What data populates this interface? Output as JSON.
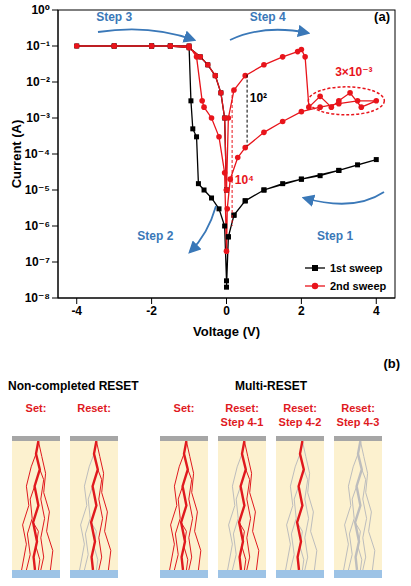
{
  "chart_data": {
    "type": "line",
    "title": "(a)",
    "x_label": "Voltage (V)",
    "y_label": "Current (A)",
    "xlim": [
      -4.5,
      4.5
    ],
    "xticks": [
      -4,
      -2,
      0,
      2,
      4
    ],
    "ylim": [
      1e-08,
      1
    ],
    "yticks": [
      {
        "value": 1e-08,
        "label": "10⁻⁸"
      },
      {
        "value": 1e-07,
        "label": "10⁻⁷"
      },
      {
        "value": 1e-06,
        "label": "10⁻⁶"
      },
      {
        "value": 1e-05,
        "label": "10⁻⁵"
      },
      {
        "value": 0.0001,
        "label": "10⁻⁴"
      },
      {
        "value": 0.001,
        "label": "10⁻³"
      },
      {
        "value": 0.01,
        "label": "10⁻²"
      },
      {
        "value": 0.1,
        "label": "10⁻¹"
      },
      {
        "value": 1,
        "label": "10⁰"
      }
    ],
    "log": "y",
    "legend": "lower right",
    "annotations": [
      "Step 1",
      "Step 2",
      "Step 3",
      "Step 4",
      "10²",
      "10⁴",
      "3×10⁻³"
    ],
    "series": [
      {
        "name": "1st sweep",
        "color": "#000000",
        "marker": "square",
        "x": [
          0,
          0.05,
          0.2,
          0.5,
          1,
          1.5,
          2,
          2.5,
          3,
          3.5,
          4,
          3,
          2,
          1,
          0.5,
          0.2,
          0.05,
          0,
          -0.05,
          -0.2,
          -0.4,
          -0.6,
          -0.75,
          -0.8,
          -0.9,
          -0.95,
          -1,
          -1.5,
          -2,
          -3,
          -4,
          -3,
          -2,
          -1.5,
          -1,
          -0.7,
          -0.5,
          -0.3,
          -0.15,
          -0.05,
          0
        ],
        "values": [
          2e-08,
          5e-07,
          2e-06,
          5e-06,
          1e-05,
          1.5e-05,
          2e-05,
          2.5e-05,
          3.5e-05,
          5e-05,
          7e-05,
          3.5e-05,
          2e-05,
          1e-05,
          5e-06,
          2e-06,
          5e-07,
          3e-08,
          1e-06,
          3e-06,
          6e-06,
          1e-05,
          1.5e-05,
          0.0003,
          0.0005,
          0.003,
          0.1,
          0.1,
          0.1,
          0.1,
          0.1,
          0.1,
          0.1,
          0.1,
          0.09,
          0.05,
          0.03,
          0.015,
          0.005,
          0.001,
          1e-05
        ]
      },
      {
        "name": "2nd sweep",
        "color": "#e8141b",
        "marker": "circle",
        "x": [
          0,
          0.05,
          0.2,
          0.5,
          1,
          1.5,
          1.9,
          2,
          2.1,
          2.2,
          2.5,
          2.8,
          3,
          3.3,
          3.6,
          4,
          3.5,
          3,
          2.5,
          2,
          1.5,
          1,
          0.5,
          0.3,
          0.1,
          0.02,
          0,
          -0.05,
          -0.2,
          -0.4,
          -0.6,
          -0.65,
          -0.8,
          -1,
          -1.5,
          -2,
          -3,
          -4,
          -3,
          -2,
          -1.5,
          -1,
          -0.7,
          -0.5,
          -0.3,
          -0.15,
          -0.05,
          0
        ],
        "values": [
          1e-05,
          0.001,
          0.006,
          0.015,
          0.03,
          0.05,
          0.07,
          0.08,
          0.05,
          0.002,
          0.004,
          0.002,
          0.003,
          0.005,
          0.002,
          0.003,
          0.003,
          0.0025,
          0.002,
          0.0015,
          0.0008,
          0.0004,
          0.00015,
          8e-05,
          2e-05,
          3e-06,
          2e-07,
          3e-05,
          0.0003,
          0.001,
          0.002,
          0.003,
          0.05,
          0.1,
          0.1,
          0.1,
          0.1,
          0.1,
          0.1,
          0.1,
          0.1,
          0.09,
          0.05,
          0.03,
          0.015,
          0.005,
          0.001,
          1e-05
        ]
      }
    ]
  },
  "diagram": {
    "label": "(b)",
    "groups": [
      {
        "title": "Non-completed RESET",
        "panels": [
          "Set:",
          "Reset:"
        ]
      },
      {
        "title": "Multi-RESET",
        "panels": [
          "Set:",
          "Reset: Step 4-1",
          "Reset: Step 4-2",
          "Reset: Step 4-3"
        ]
      }
    ]
  }
}
